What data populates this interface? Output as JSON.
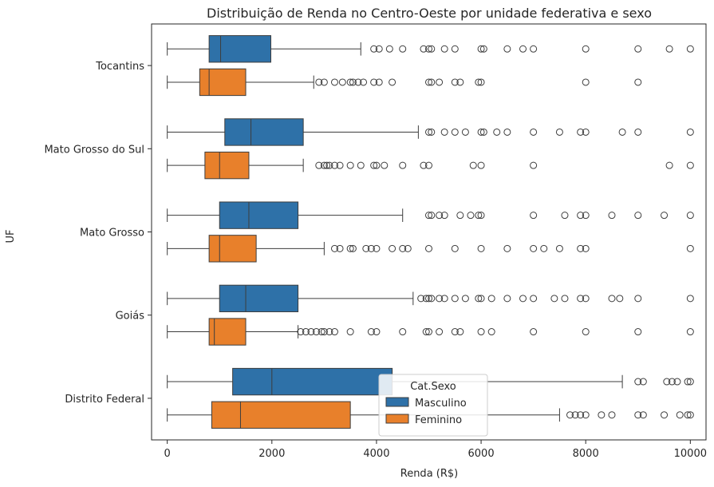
{
  "chart_data": {
    "type": "boxplot",
    "orientation": "horizontal",
    "title": "Distribuição de Renda no Centro-Oeste por unidade federativa e sexo",
    "xlabel": "Renda (R$)",
    "ylabel": "UF",
    "xlim": [
      -300,
      10300
    ],
    "xticks": [
      0,
      2000,
      4000,
      6000,
      8000,
      10000
    ],
    "xtick_labels": [
      "0",
      "2000",
      "4000",
      "6000",
      "8000",
      "10000"
    ],
    "grid": false,
    "legend": {
      "title": "Cat.Sexo",
      "placement": "lower-center"
    },
    "series": [
      {
        "name": "Masculino",
        "color": "#2e71a8"
      },
      {
        "name": "Feminino",
        "color": "#e8802b"
      }
    ],
    "categories": [
      {
        "label": "Tocantins",
        "boxes": [
          {
            "series": "Masculino",
            "whislo": 0,
            "q1": 800,
            "median": 1020,
            "q3": 1980,
            "whishi": 3700,
            "fliers": [
              3950,
              4050,
              4250,
              4500,
              4900,
              5000,
              5050,
              5300,
              5500,
              6000,
              6050,
              6500,
              6800,
              7000,
              8000,
              9000,
              9600,
              10000
            ]
          },
          {
            "series": "Feminino",
            "whislo": 0,
            "q1": 620,
            "median": 800,
            "q3": 1500,
            "whishi": 2800,
            "fliers": [
              2900,
              3000,
              3200,
              3350,
              3500,
              3550,
              3650,
              3750,
              3950,
              4050,
              4300,
              5000,
              5050,
              5200,
              5500,
              5600,
              5950,
              6000,
              8000,
              9000
            ]
          }
        ]
      },
      {
        "label": "Mato Grosso do Sul",
        "boxes": [
          {
            "series": "Masculino",
            "whislo": 0,
            "q1": 1100,
            "median": 1600,
            "q3": 2600,
            "whishi": 4800,
            "fliers": [
              5000,
              5050,
              5300,
              5500,
              5700,
              6000,
              6050,
              6300,
              6500,
              7000,
              7500,
              7900,
              8000,
              8700,
              9000,
              10000
            ]
          },
          {
            "series": "Feminino",
            "whislo": 0,
            "q1": 720,
            "median": 1000,
            "q3": 1560,
            "whishi": 2600,
            "fliers": [
              2900,
              3000,
              3050,
              3100,
              3200,
              3300,
              3500,
              3700,
              3950,
              4000,
              4150,
              4500,
              4900,
              5000,
              5850,
              6000,
              7000,
              9600,
              10000
            ]
          }
        ]
      },
      {
        "label": "Mato Grosso",
        "boxes": [
          {
            "series": "Masculino",
            "whislo": 0,
            "q1": 1000,
            "median": 1560,
            "q3": 2500,
            "whishi": 4500,
            "fliers": [
              5000,
              5050,
              5200,
              5300,
              5600,
              5800,
              5950,
              6000,
              7000,
              7600,
              7900,
              8000,
              8500,
              9000,
              9500,
              10000
            ]
          },
          {
            "series": "Feminino",
            "whislo": 0,
            "q1": 800,
            "median": 1000,
            "q3": 1700,
            "whishi": 3000,
            "fliers": [
              3200,
              3300,
              3500,
              3550,
              3800,
              3900,
              4000,
              4300,
              4500,
              4600,
              5000,
              5500,
              6000,
              6500,
              7000,
              7200,
              7500,
              7900,
              8000,
              10000
            ]
          }
        ]
      },
      {
        "label": "Goiás",
        "boxes": [
          {
            "series": "Masculino",
            "whislo": 0,
            "q1": 1000,
            "median": 1500,
            "q3": 2500,
            "whishi": 4700,
            "fliers": [
              4850,
              4950,
              5000,
              5050,
              5200,
              5300,
              5500,
              5700,
              5950,
              6000,
              6200,
              6500,
              6800,
              7000,
              7400,
              7600,
              7900,
              8000,
              8500,
              8650,
              9000,
              10000
            ]
          },
          {
            "series": "Feminino",
            "whislo": 0,
            "q1": 800,
            "median": 900,
            "q3": 1500,
            "whishi": 2500,
            "fliers": [
              2550,
              2650,
              2750,
              2850,
              2950,
              3000,
              3100,
              3200,
              3500,
              3900,
              4000,
              4500,
              4950,
              5000,
              5200,
              5500,
              5600,
              6000,
              6200,
              7000,
              8000,
              9000,
              10000
            ]
          }
        ]
      },
      {
        "label": "Distrito Federal",
        "boxes": [
          {
            "series": "Masculino",
            "whislo": 0,
            "q1": 1250,
            "median": 2000,
            "q3": 4300,
            "whishi": 8700,
            "fliers": [
              9000,
              9100,
              9550,
              9650,
              9750,
              9950,
              10000
            ]
          },
          {
            "series": "Feminino",
            "whislo": 0,
            "q1": 850,
            "median": 1400,
            "q3": 3500,
            "whishi": 7500,
            "fliers": [
              7700,
              7800,
              7900,
              8000,
              8300,
              8500,
              9000,
              9100,
              9500,
              9800,
              9950,
              10000
            ]
          }
        ]
      }
    ]
  }
}
